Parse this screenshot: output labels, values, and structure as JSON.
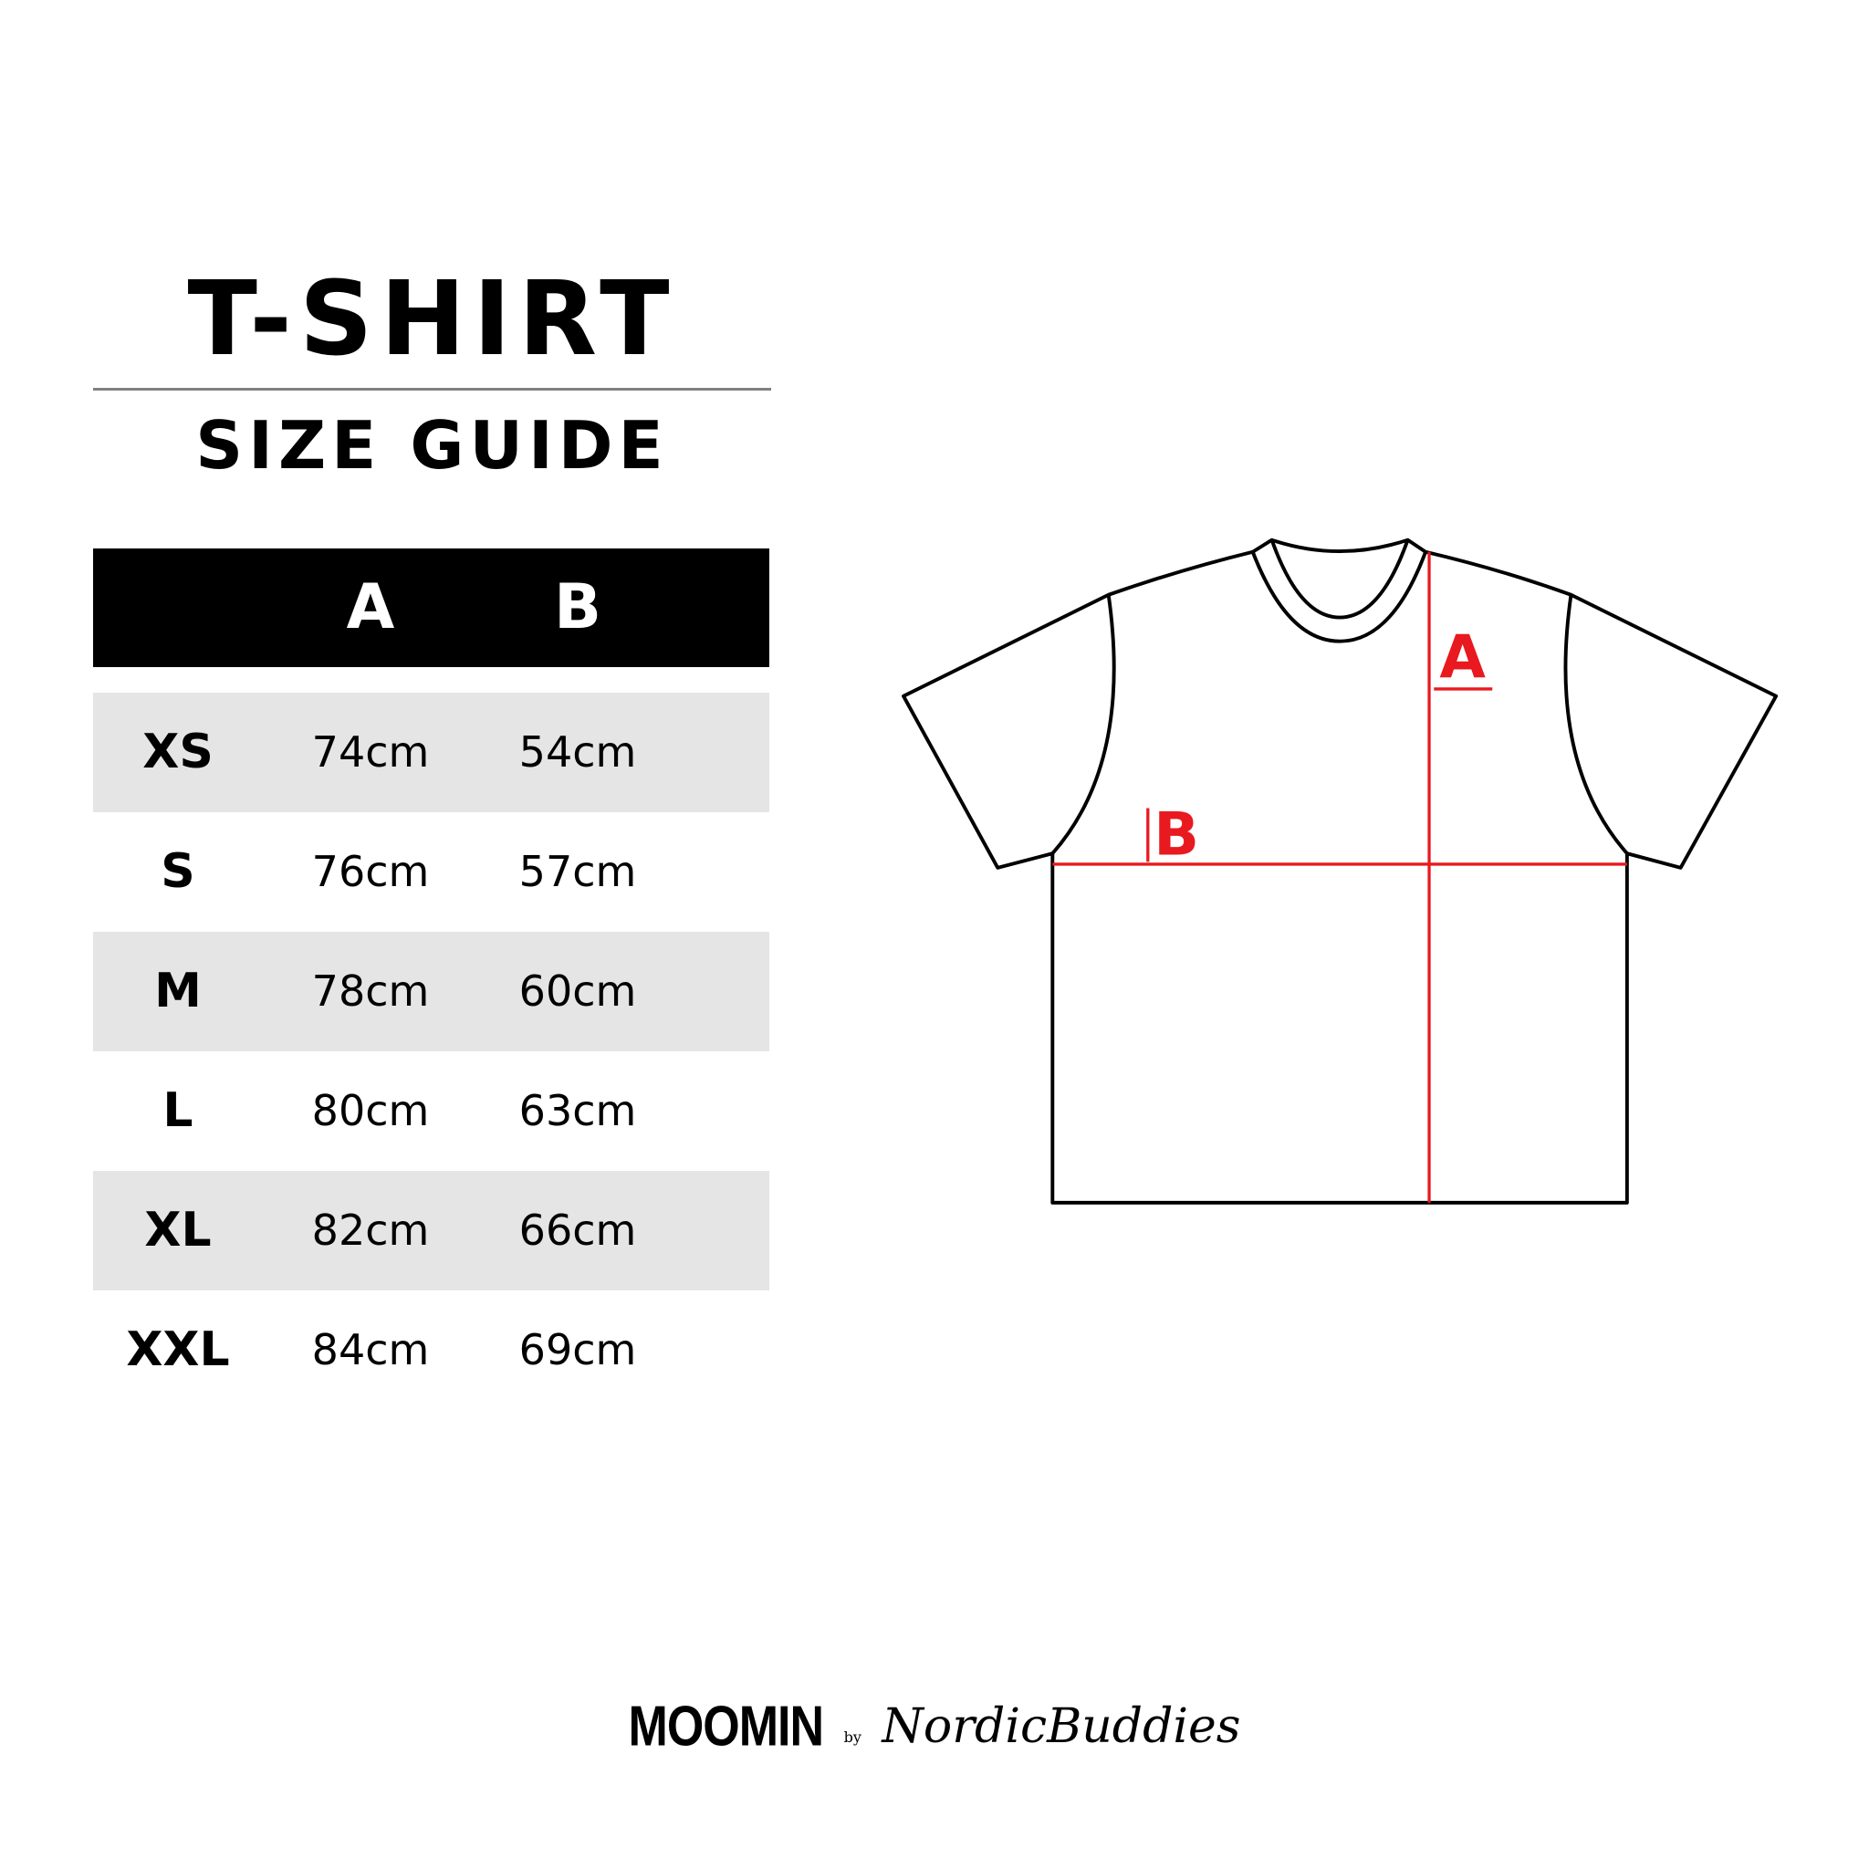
{
  "title": "T-SHIRT",
  "subtitle": "SIZE GUIDE",
  "table": {
    "headers": [
      "",
      "A",
      "B"
    ],
    "rows": [
      {
        "size": "XS",
        "a": "74cm",
        "b": "54cm"
      },
      {
        "size": "S",
        "a": "76cm",
        "b": "57cm"
      },
      {
        "size": "M",
        "a": "78cm",
        "b": "60cm"
      },
      {
        "size": "L",
        "a": "80cm",
        "b": "63cm"
      },
      {
        "size": "XL",
        "a": "82cm",
        "b": "66cm"
      },
      {
        "size": "XXL",
        "a": "84cm",
        "b": "69cm"
      }
    ]
  },
  "diagram": {
    "label_a": "A",
    "label_b": "B",
    "accent": "#e8191f"
  },
  "logo": {
    "brand": "MOOMIN",
    "by": "by",
    "partner": "NordicBuddies"
  },
  "colors": {
    "header_bg": "#000000",
    "row_shade": "#e5e5e5"
  }
}
